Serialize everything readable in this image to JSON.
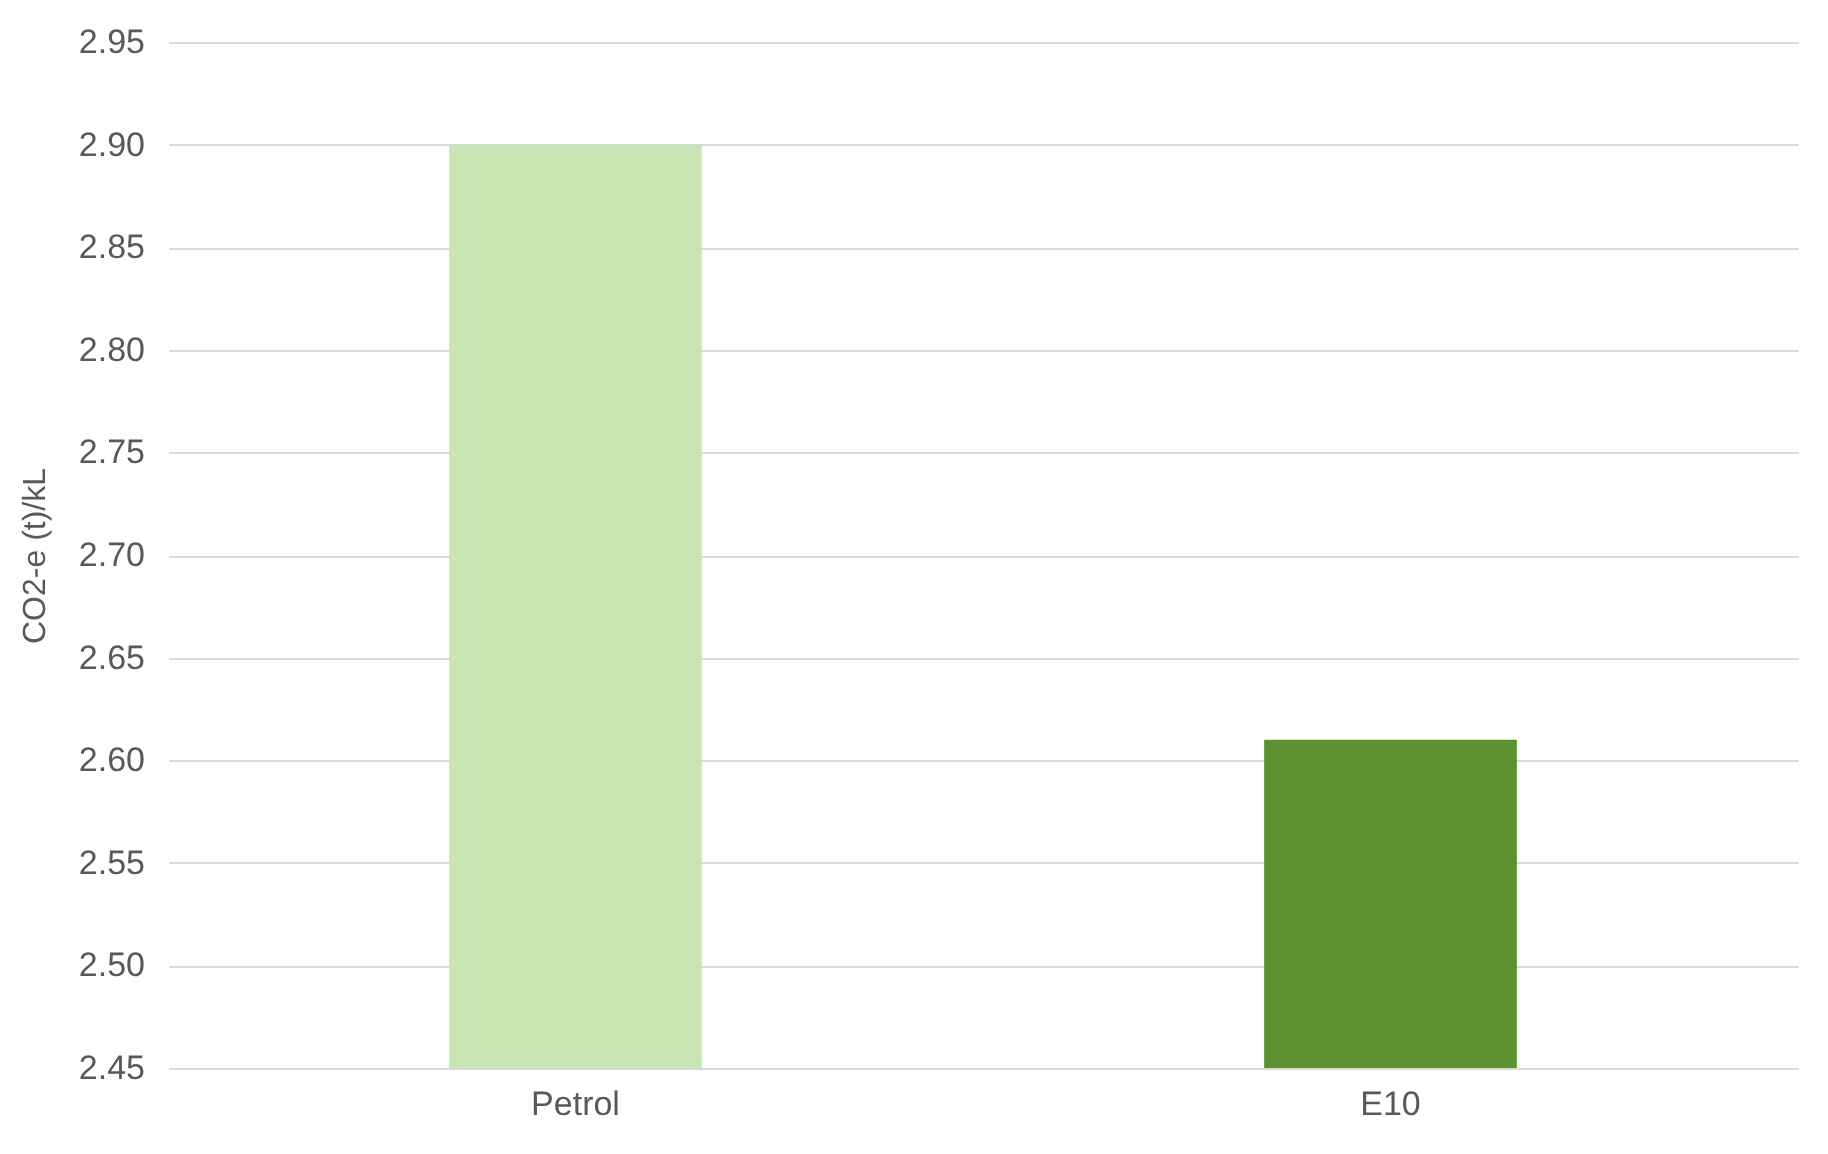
{
  "chart_data": {
    "type": "bar",
    "ylabel": "CO2-e (t)/kL",
    "categories": [
      "Petrol",
      "E10"
    ],
    "values": [
      2.9,
      2.61
    ],
    "colors": [
      "#c9e5b4",
      "#5b9131"
    ],
    "ylim": [
      2.45,
      2.95
    ],
    "yticks": [
      {
        "value": 2.45,
        "label": "2.45"
      },
      {
        "value": 2.5,
        "label": "2.50"
      },
      {
        "value": 2.55,
        "label": "2.55"
      },
      {
        "value": 2.6,
        "label": "2.60"
      },
      {
        "value": 2.65,
        "label": "2.65"
      },
      {
        "value": 2.7,
        "label": "2.70"
      },
      {
        "value": 2.75,
        "label": "2.75"
      },
      {
        "value": 2.8,
        "label": "2.80"
      },
      {
        "value": 2.85,
        "label": "2.85"
      },
      {
        "value": 2.9,
        "label": "2.90"
      },
      {
        "value": 2.95,
        "label": "2.95"
      }
    ],
    "grid": "y"
  }
}
